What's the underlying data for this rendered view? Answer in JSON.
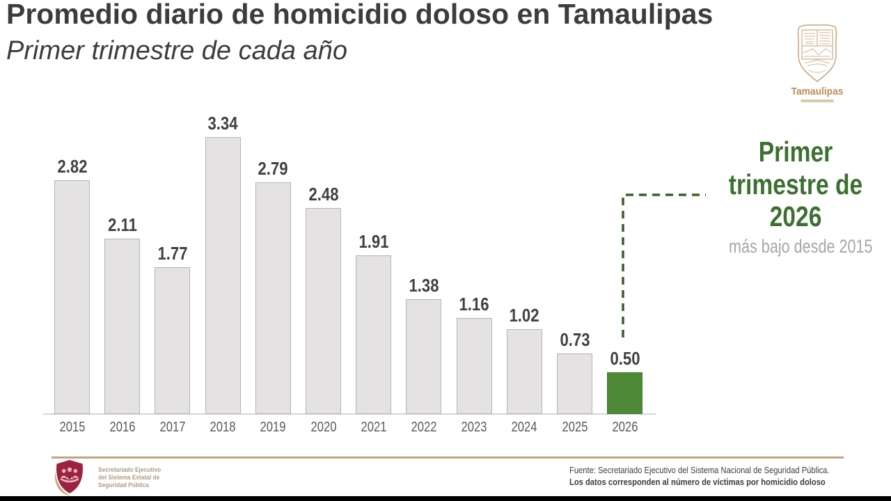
{
  "title": "Promedio diario de homicidio doloso en Tamaulipas",
  "subtitle": "Primer trimestre de cada año",
  "logo": {
    "label": "Tamaulipas"
  },
  "chart_data": {
    "type": "bar",
    "title": "Promedio diario de homicidio doloso en Tamaulipas",
    "subtitle": "Primer trimestre de cada año",
    "categories": [
      "2015",
      "2016",
      "2017",
      "2018",
      "2019",
      "2020",
      "2021",
      "2022",
      "2023",
      "2024",
      "2025",
      "2026"
    ],
    "values": [
      2.82,
      2.11,
      1.77,
      3.34,
      2.79,
      2.48,
      1.91,
      1.38,
      1.16,
      1.02,
      0.73,
      0.5
    ],
    "highlight_category": "2026",
    "bar_color": "#e4e2e2",
    "bar_border": "#b5b3b3",
    "highlight_color": "#4e8938",
    "highlight_border": "#447a30",
    "value_label_color": "#404040",
    "year_label_color": "#595959",
    "ylim": [
      0,
      3.4
    ],
    "grid": false,
    "legend": false
  },
  "callout": {
    "lines": [
      "Primer",
      "trimestre de",
      "2026"
    ],
    "note": "más bajo desde 2015",
    "accent_color": "#3c7030",
    "connector_color": "#3a5e26"
  },
  "footer": {
    "org_lines": [
      "Secretariado Ejecutivo",
      "del Sistema Estatal de",
      "Seguridad Pública"
    ],
    "source": "Fuente: Secretariado Ejecutivo del Sistema Nacional de Seguridad Pública.",
    "note": "Los datos corresponden al número de víctimas por homicidio doloso"
  }
}
